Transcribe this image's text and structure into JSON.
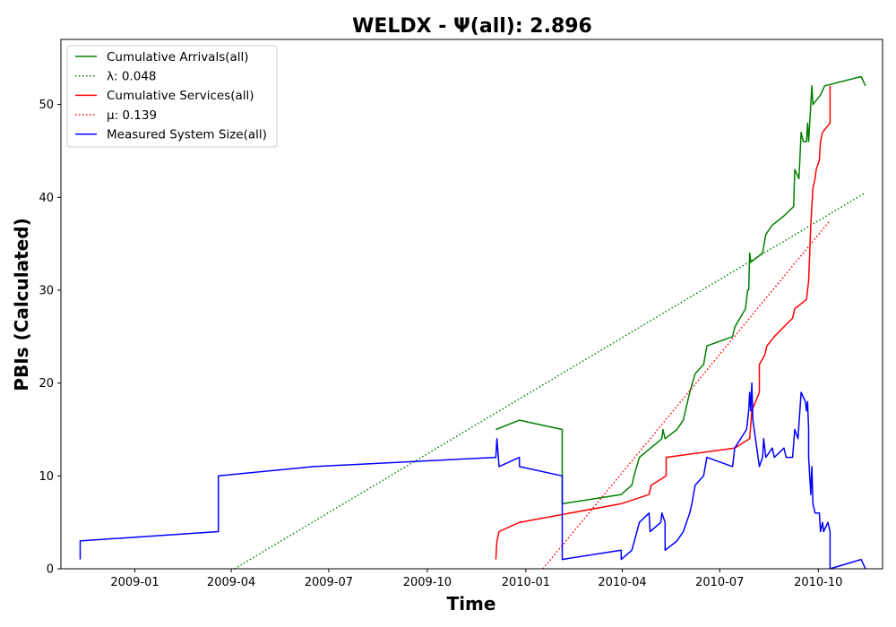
{
  "chart_data": {
    "type": "line",
    "title": "WELDX -  Ψ(all): 2.896",
    "xlabel": "Time",
    "ylabel": "PBIs (Calculated)",
    "xlim": [
      "2008-10-24",
      "2010-11-30"
    ],
    "ylim": [
      0,
      57
    ],
    "x_ticks": [
      "2009-01",
      "2009-04",
      "2009-07",
      "2009-10",
      "2010-01",
      "2010-04",
      "2010-07",
      "2010-10"
    ],
    "y_ticks": [
      0,
      10,
      20,
      30,
      40,
      50
    ],
    "grid": false,
    "legend_position": "top-left",
    "legend": [
      "Cumulative Arrivals(all)",
      "λ: 0.048",
      "Cumulative Services(all)",
      "μ: 0.139",
      "Measured System Size(all)"
    ],
    "series": [
      {
        "name": "Cumulative Arrivals(all)",
        "color": "#008000",
        "style": "solid",
        "points": [
          [
            "2009-12-04",
            15
          ],
          [
            "2009-12-26",
            16
          ],
          [
            "2010-02-04",
            15
          ],
          [
            "2010-02-04",
            7
          ],
          [
            "2010-03-31",
            8
          ],
          [
            "2010-04-10",
            9
          ],
          [
            "2010-04-12",
            10
          ],
          [
            "2010-04-17",
            12
          ],
          [
            "2010-05-08",
            14
          ],
          [
            "2010-05-09",
            15
          ],
          [
            "2010-05-11",
            14
          ],
          [
            "2010-05-22",
            15
          ],
          [
            "2010-05-28",
            16
          ],
          [
            "2010-06-03",
            19
          ],
          [
            "2010-06-08",
            21
          ],
          [
            "2010-06-16",
            22
          ],
          [
            "2010-06-19",
            24
          ],
          [
            "2010-07-13",
            25
          ],
          [
            "2010-07-15",
            26
          ],
          [
            "2010-07-25",
            28
          ],
          [
            "2010-07-27",
            30
          ],
          [
            "2010-07-28",
            30
          ],
          [
            "2010-07-29",
            34
          ],
          [
            "2010-07-30",
            33
          ],
          [
            "2010-08-10",
            34
          ],
          [
            "2010-08-13",
            36
          ],
          [
            "2010-08-19",
            37
          ],
          [
            "2010-08-30",
            38
          ],
          [
            "2010-09-08",
            39
          ],
          [
            "2010-09-09",
            43
          ],
          [
            "2010-09-13",
            42
          ],
          [
            "2010-09-15",
            47
          ],
          [
            "2010-09-17",
            46
          ],
          [
            "2010-09-20",
            46
          ],
          [
            "2010-09-21",
            48
          ],
          [
            "2010-09-22",
            46
          ],
          [
            "2010-09-25",
            52
          ],
          [
            "2010-09-26",
            50
          ],
          [
            "2010-10-03",
            51
          ],
          [
            "2010-10-07",
            52
          ],
          [
            "2010-11-10",
            53
          ],
          [
            "2010-11-14",
            52
          ]
        ]
      },
      {
        "name": "λ: 0.048",
        "color": "#008000",
        "style": "dotted",
        "points": [
          [
            "2009-04-04",
            0
          ],
          [
            "2010-11-14",
            40.5
          ]
        ]
      },
      {
        "name": "Cumulative Services(all)",
        "color": "#ff0000",
        "style": "solid",
        "points": [
          [
            "2009-12-04",
            1
          ],
          [
            "2009-12-05",
            3
          ],
          [
            "2009-12-07",
            4
          ],
          [
            "2009-12-26",
            5
          ],
          [
            "2010-03-31",
            7
          ],
          [
            "2010-04-26",
            8
          ],
          [
            "2010-04-28",
            9
          ],
          [
            "2010-05-12",
            10
          ],
          [
            "2010-05-12",
            12
          ],
          [
            "2010-07-15",
            13
          ],
          [
            "2010-07-29",
            14
          ],
          [
            "2010-07-31",
            17
          ],
          [
            "2010-08-07",
            19
          ],
          [
            "2010-08-07",
            22
          ],
          [
            "2010-08-12",
            23
          ],
          [
            "2010-08-14",
            24
          ],
          [
            "2010-08-21",
            25
          ],
          [
            "2010-09-07",
            27
          ],
          [
            "2010-09-09",
            28
          ],
          [
            "2010-09-20",
            29
          ],
          [
            "2010-09-22",
            31
          ],
          [
            "2010-09-24",
            37
          ],
          [
            "2010-09-26",
            41
          ],
          [
            "2010-09-28",
            42
          ],
          [
            "2010-09-29",
            43
          ],
          [
            "2010-10-02",
            44
          ],
          [
            "2010-10-03",
            46
          ],
          [
            "2010-10-05",
            47
          ],
          [
            "2010-10-12",
            48
          ],
          [
            "2010-10-12",
            52
          ]
        ]
      },
      {
        "name": "μ: 0.139",
        "color": "#ff0000",
        "style": "dotted",
        "points": [
          [
            "2010-01-17",
            0
          ],
          [
            "2010-10-12",
            37.5
          ]
        ]
      },
      {
        "name": "Measured System Size(all)",
        "color": "#0000ff",
        "style": "solid",
        "points": [
          [
            "2008-11-11",
            1
          ],
          [
            "2008-11-11",
            3
          ],
          [
            "2009-03-20",
            4
          ],
          [
            "2009-03-20",
            10
          ],
          [
            "2009-06-17",
            11
          ],
          [
            "2009-12-04",
            12
          ],
          [
            "2009-12-05",
            14
          ],
          [
            "2009-12-07",
            11
          ],
          [
            "2009-12-26",
            12
          ],
          [
            "2009-12-26",
            11
          ],
          [
            "2010-02-04",
            10
          ],
          [
            "2010-02-04",
            1
          ],
          [
            "2010-03-31",
            2
          ],
          [
            "2010-03-31",
            1
          ],
          [
            "2010-04-10",
            2
          ],
          [
            "2010-04-17",
            5
          ],
          [
            "2010-04-26",
            6
          ],
          [
            "2010-04-27",
            4
          ],
          [
            "2010-05-07",
            5
          ],
          [
            "2010-05-08",
            6
          ],
          [
            "2010-05-11",
            5
          ],
          [
            "2010-05-11",
            2
          ],
          [
            "2010-05-22",
            3
          ],
          [
            "2010-05-28",
            4
          ],
          [
            "2010-06-03",
            6
          ],
          [
            "2010-06-05",
            7
          ],
          [
            "2010-06-08",
            9
          ],
          [
            "2010-06-16",
            10
          ],
          [
            "2010-06-19",
            12
          ],
          [
            "2010-07-13",
            11
          ],
          [
            "2010-07-15",
            13
          ],
          [
            "2010-07-26",
            15
          ],
          [
            "2010-07-27",
            16
          ],
          [
            "2010-07-28",
            17
          ],
          [
            "2010-07-29",
            19
          ],
          [
            "2010-07-30",
            17
          ],
          [
            "2010-07-31",
            20
          ],
          [
            "2010-08-01",
            16
          ],
          [
            "2010-08-07",
            11
          ],
          [
            "2010-08-10",
            12
          ],
          [
            "2010-08-11",
            14
          ],
          [
            "2010-08-13",
            12
          ],
          [
            "2010-08-19",
            13
          ],
          [
            "2010-08-21",
            12
          ],
          [
            "2010-08-30",
            13
          ],
          [
            "2010-09-01",
            12
          ],
          [
            "2010-09-07",
            12
          ],
          [
            "2010-09-09",
            15
          ],
          [
            "2010-09-12",
            14
          ],
          [
            "2010-09-15",
            19
          ],
          [
            "2010-09-19",
            18
          ],
          [
            "2010-09-20",
            17
          ],
          [
            "2010-09-21",
            18
          ],
          [
            "2010-09-22",
            15
          ],
          [
            "2010-09-22",
            12
          ],
          [
            "2010-09-23",
            10
          ],
          [
            "2010-09-24",
            8
          ],
          [
            "2010-09-25",
            11
          ],
          [
            "2010-09-26",
            7
          ],
          [
            "2010-09-28",
            6
          ],
          [
            "2010-10-02",
            6
          ],
          [
            "2010-10-03",
            4
          ],
          [
            "2010-10-05",
            5
          ],
          [
            "2010-10-06",
            4
          ],
          [
            "2010-10-10",
            5
          ],
          [
            "2010-10-12",
            4
          ],
          [
            "2010-10-12",
            0
          ],
          [
            "2010-11-10",
            1
          ],
          [
            "2010-11-14",
            0
          ]
        ]
      }
    ]
  }
}
